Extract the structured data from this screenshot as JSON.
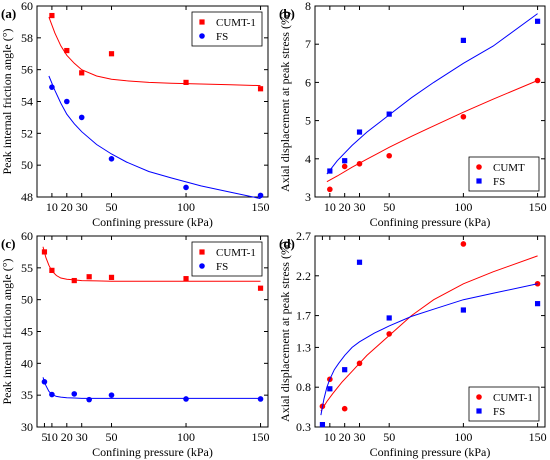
{
  "chart_data": [
    {
      "panel_label": "(a)",
      "type": "scatter",
      "xlabel": "Confining pressure (kPa)",
      "ylabel": "Peak internal friction angle (°)",
      "xlim": [
        0,
        155
      ],
      "ylim": [
        48,
        60
      ],
      "xticks": [
        10,
        20,
        30,
        50,
        100,
        150
      ],
      "yticks": [
        48,
        50,
        52,
        54,
        56,
        58,
        60
      ],
      "grid": false,
      "legend_position": "top-right",
      "series": [
        {
          "name": "CUMT-1",
          "marker": "square",
          "color": "#ff0000",
          "x": [
            10,
            20,
            30,
            50,
            100,
            150
          ],
          "y": [
            59.4,
            57.2,
            55.8,
            57.0,
            55.2,
            54.8
          ],
          "fit": {
            "x": [
              8,
              12,
              16,
              20,
              25,
              30,
              40,
              50,
              60,
              75,
              90,
              110,
              130,
              150
            ],
            "y": [
              59.3,
              58.3,
              57.5,
              56.9,
              56.4,
              56.0,
              55.6,
              55.4,
              55.3,
              55.2,
              55.15,
              55.1,
              55.05,
              55.0
            ]
          }
        },
        {
          "name": "FS",
          "marker": "circle",
          "color": "#0000ff",
          "x": [
            10,
            20,
            30,
            50,
            100,
            150
          ],
          "y": [
            54.9,
            54.0,
            53.0,
            50.4,
            48.6,
            48.1
          ],
          "fit": {
            "x": [
              8,
              12,
              16,
              20,
              25,
              30,
              40,
              50,
              60,
              75,
              90,
              110,
              130,
              150
            ],
            "y": [
              55.6,
              54.7,
              53.9,
              53.2,
              52.6,
              52.1,
              51.3,
              50.7,
              50.2,
              49.6,
              49.2,
              48.7,
              48.3,
              47.9
            ]
          }
        }
      ]
    },
    {
      "panel_label": "(b)",
      "type": "scatter",
      "xlabel": "Confining pressure (kPa)",
      "ylabel": "Axial displacement at peak stress (%)",
      "xlim": [
        0,
        155
      ],
      "ylim": [
        3,
        8
      ],
      "xticks": [
        10,
        20,
        30,
        50,
        100,
        150
      ],
      "yticks": [
        3,
        4,
        5,
        6,
        7,
        8
      ],
      "grid": false,
      "legend_position": "bottom-right",
      "series": [
        {
          "name": "CUMT",
          "marker": "circle",
          "color": "#ff0000",
          "x": [
            10,
            20,
            30,
            50,
            100,
            150
          ],
          "y": [
            3.2,
            3.8,
            3.87,
            4.08,
            5.1,
            6.05
          ],
          "fit": {
            "x": [
              8,
              15,
              25,
              35,
              50,
              65,
              80,
              100,
              120,
              150
            ],
            "y": [
              3.4,
              3.55,
              3.78,
              3.99,
              4.3,
              4.59,
              4.86,
              5.22,
              5.56,
              6.05
            ]
          }
        },
        {
          "name": "FS",
          "marker": "square",
          "color": "#0000ff",
          "x": [
            10,
            20,
            30,
            50,
            100,
            150
          ],
          "y": [
            3.68,
            3.95,
            4.7,
            5.17,
            7.1,
            7.6
          ],
          "fit": {
            "x": [
              8,
              15,
              25,
              35,
              50,
              65,
              80,
              100,
              120,
              150
            ],
            "y": [
              3.6,
              3.95,
              4.35,
              4.7,
              5.15,
              5.6,
              6.0,
              6.5,
              6.95,
              7.8
            ]
          }
        }
      ]
    },
    {
      "panel_label": "(c)",
      "type": "scatter",
      "xlabel": "Confining pressure (kPa)",
      "ylabel": "Peak internal friction angle (°)",
      "xlim": [
        0,
        155
      ],
      "ylim": [
        30,
        60
      ],
      "xticks": [
        5,
        10,
        20,
        30,
        50,
        100,
        150
      ],
      "tick_labels": [
        "5",
        "10",
        "20",
        "30",
        "50",
        "100",
        "150"
      ],
      "yticks": [
        30,
        35,
        40,
        45,
        50,
        55,
        60
      ],
      "grid": false,
      "legend_position": "top-right",
      "series": [
        {
          "name": "CUMT-1",
          "marker": "square",
          "color": "#ff0000",
          "x": [
            5,
            10,
            25,
            35,
            50,
            100,
            150
          ],
          "y": [
            57.5,
            54.6,
            53.0,
            53.6,
            53.5,
            53.3,
            51.8
          ],
          "fit": {
            "x": [
              4,
              6,
              8,
              10,
              13,
              16,
              20,
              25,
              30,
              40,
              50,
              70,
              100,
              130,
              150
            ],
            "y": [
              58.3,
              56.6,
              55.4,
              54.5,
              53.8,
              53.4,
              53.2,
              53.1,
              53.0,
              52.95,
              52.9,
              52.9,
              52.9,
              52.9,
              52.9
            ]
          }
        },
        {
          "name": "FS",
          "marker": "circle",
          "color": "#0000ff",
          "x": [
            5,
            10,
            25,
            35,
            50,
            100,
            150
          ],
          "y": [
            37.1,
            35.1,
            35.2,
            34.3,
            35.0,
            34.4,
            34.4
          ],
          "fit": {
            "x": [
              4,
              6,
              8,
              10,
              13,
              16,
              20,
              25,
              30,
              40,
              50,
              70,
              100,
              130,
              150
            ],
            "y": [
              37.8,
              36.5,
              35.6,
              35.1,
              34.8,
              34.7,
              34.6,
              34.55,
              34.5,
              34.5,
              34.5,
              34.5,
              34.5,
              34.5,
              34.5
            ]
          }
        }
      ]
    },
    {
      "panel_label": "(d)",
      "type": "scatter",
      "xlabel": "Confining pressure (kPa)",
      "ylabel": "Axial displacement at peak stress (%)",
      "xlim": [
        0,
        155
      ],
      "ylim": [
        0.3,
        2.7
      ],
      "xticks": [
        5,
        10,
        20,
        30,
        50,
        100,
        150
      ],
      "tick_labels": [
        "",
        "10",
        "20",
        "30",
        "50",
        "100",
        "150"
      ],
      "yticks": [
        0.3,
        0.8,
        1.3,
        1.7,
        2.2,
        2.7
      ],
      "tick_labels_y": [
        "0.3",
        "0.8",
        "1.3",
        "1.7",
        "2.2",
        "2.7"
      ],
      "grid": false,
      "legend_position": "bottom-right",
      "series": [
        {
          "name": "CUMT-1",
          "marker": "circle",
          "color": "#ff0000",
          "x": [
            5,
            10,
            20,
            30,
            50,
            100,
            150
          ],
          "y": [
            0.56,
            0.9,
            0.53,
            1.1,
            1.47,
            2.6,
            2.1
          ],
          "fit": {
            "x": [
              4,
              8,
              12,
              18,
              25,
              35,
              50,
              65,
              80,
              100,
              120,
              150
            ],
            "y": [
              0.5,
              0.62,
              0.72,
              0.86,
              1.0,
              1.2,
              1.45,
              1.7,
              1.9,
              2.1,
              2.25,
              2.45
            ]
          }
        },
        {
          "name": "FS",
          "marker": "square",
          "color": "#0000ff",
          "x": [
            5,
            10,
            20,
            30,
            50,
            100,
            150
          ],
          "y": [
            0.33,
            0.78,
            1.02,
            2.37,
            1.67,
            1.77,
            1.85
          ],
          "fit": {
            "x": [
              4,
              6,
              8,
              10,
              13,
              16,
              20,
              25,
              30,
              40,
              50,
              65,
              80,
              100,
              120,
              150
            ],
            "y": [
              0.45,
              0.65,
              0.8,
              0.9,
              1.02,
              1.1,
              1.2,
              1.3,
              1.37,
              1.48,
              1.57,
              1.69,
              1.78,
              1.9,
              1.98,
              2.1
            ]
          }
        }
      ]
    }
  ]
}
